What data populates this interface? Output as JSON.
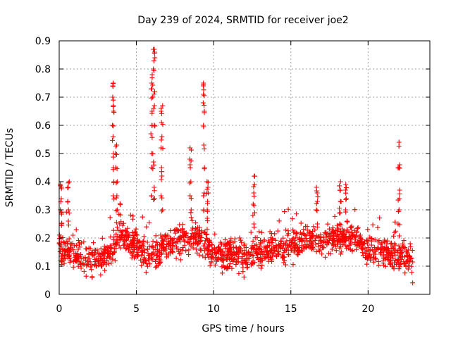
{
  "chart_data": {
    "type": "scatter",
    "title": "Day 239 of 2024, SRMTID for receiver joe2",
    "xlabel": "GPS time / hours",
    "ylabel": "SRMTID / TECUs",
    "xlim": [
      0,
      24
    ],
    "ylim": [
      0,
      0.9
    ],
    "xticks": [
      "0",
      "5",
      "10",
      "15",
      "20"
    ],
    "yticks": [
      "0",
      "0.1",
      "0.2",
      "0.3",
      "0.4",
      "0.5",
      "0.6",
      "0.7",
      "0.8",
      "0.9"
    ],
    "grid": true,
    "marker": "+",
    "color": "#ff0000",
    "baseline_profile": {
      "description": "approximate median SRMTID over time (hours, TECU)",
      "x": [
        0,
        1,
        2,
        3,
        3.5,
        4,
        5,
        6,
        7,
        8,
        9,
        10,
        11,
        12,
        13,
        14,
        15,
        16,
        17,
        18,
        19,
        20,
        21,
        22,
        22.9
      ],
      "y": [
        0.16,
        0.14,
        0.12,
        0.13,
        0.17,
        0.22,
        0.17,
        0.12,
        0.18,
        0.2,
        0.2,
        0.15,
        0.14,
        0.13,
        0.15,
        0.16,
        0.17,
        0.2,
        0.18,
        0.2,
        0.2,
        0.16,
        0.15,
        0.14,
        0.1
      ]
    },
    "spread": 0.05,
    "points_count": 1500,
    "spikes": [
      {
        "x": 0.1,
        "y": [
          0.25,
          0.29,
          0.3,
          0.34,
          0.38,
          0.39
        ]
      },
      {
        "x": 0.6,
        "y": [
          0.26,
          0.3,
          0.33,
          0.38,
          0.4
        ]
      },
      {
        "x": 3.5,
        "y": [
          0.35,
          0.4,
          0.45,
          0.5,
          0.56,
          0.6,
          0.65,
          0.67,
          0.7,
          0.74,
          0.75
        ]
      },
      {
        "x": 3.7,
        "y": [
          0.3,
          0.35,
          0.4,
          0.45,
          0.5,
          0.53
        ]
      },
      {
        "x": 6.0,
        "y": [
          0.35,
          0.45,
          0.5,
          0.57,
          0.6,
          0.65,
          0.7,
          0.73,
          0.75,
          0.78
        ]
      },
      {
        "x": 6.15,
        "y": [
          0.34,
          0.38,
          0.47,
          0.6,
          0.67,
          0.72,
          0.8,
          0.84,
          0.86,
          0.87
        ]
      },
      {
        "x": 6.65,
        "y": [
          0.3,
          0.35,
          0.42,
          0.45,
          0.52,
          0.56,
          0.61,
          0.65,
          0.67
        ]
      },
      {
        "x": 8.5,
        "y": [
          0.3,
          0.35,
          0.4,
          0.46,
          0.48,
          0.52
        ]
      },
      {
        "x": 9.35,
        "y": [
          0.3,
          0.36,
          0.45,
          0.53,
          0.6,
          0.65,
          0.68,
          0.71,
          0.74,
          0.75
        ]
      },
      {
        "x": 9.6,
        "y": [
          0.27,
          0.3,
          0.33,
          0.36,
          0.38,
          0.4
        ]
      },
      {
        "x": 12.6,
        "y": [
          0.25,
          0.29,
          0.32,
          0.36,
          0.39,
          0.42
        ]
      },
      {
        "x": 16.7,
        "y": [
          0.25,
          0.3,
          0.33,
          0.36,
          0.38
        ]
      },
      {
        "x": 18.2,
        "y": [
          0.25,
          0.29,
          0.33,
          0.37,
          0.4
        ]
      },
      {
        "x": 18.6,
        "y": [
          0.26,
          0.3,
          0.34,
          0.37,
          0.39
        ]
      },
      {
        "x": 22.0,
        "y": [
          0.25,
          0.3,
          0.34,
          0.37,
          0.45,
          0.46,
          0.54
        ]
      }
    ]
  }
}
